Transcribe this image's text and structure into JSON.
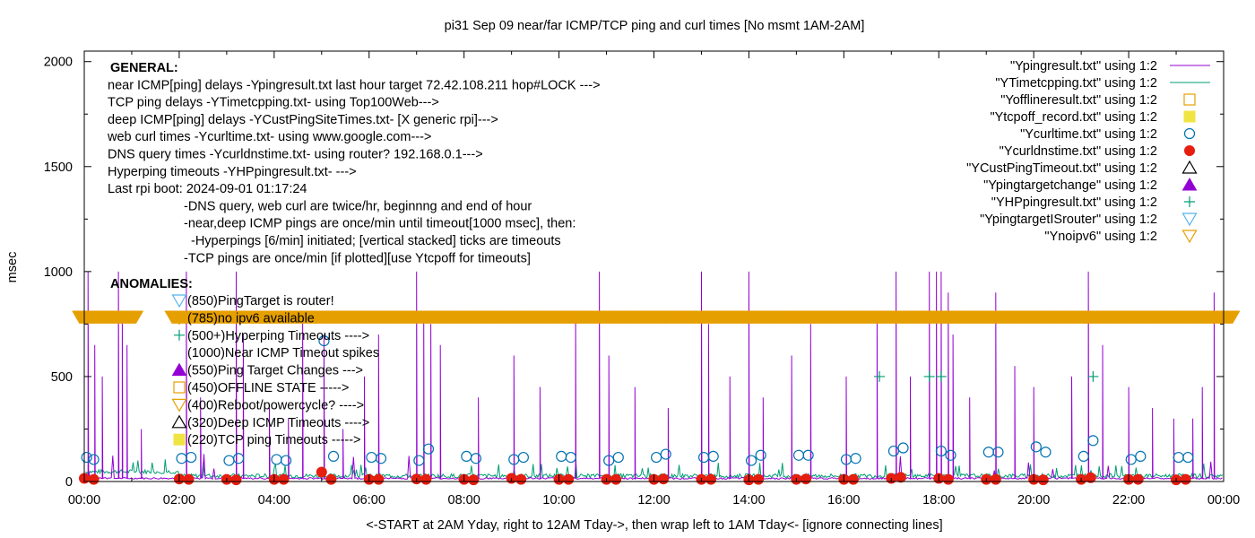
{
  "chart_data": {
    "type": "line",
    "title": "pi31 Sep 09  near/far ICMP/TCP ping and curl times [No msmt 1AM-2AM]",
    "xlabel": "<-START at 2AM Yday, right to 12AM Tday->, then wrap left to 1AM Tday<- [ignore connecting lines]",
    "ylabel": "msec",
    "xlim": [
      0,
      24
    ],
    "ylim": [
      0,
      2050
    ],
    "x_tick_labels": [
      "00:00",
      "02:00",
      "04:00",
      "06:00",
      "08:00",
      "10:00",
      "12:00",
      "14:00",
      "16:00",
      "18:00",
      "20:00",
      "22:00",
      "00:00"
    ],
    "y_tick_labels": [
      "0",
      "500",
      "1000",
      "1500",
      "2000"
    ],
    "y_tick_values": [
      0,
      500,
      1000,
      1500,
      2000
    ],
    "grid": false,
    "legend_position": "top-right",
    "legend": [
      {
        "label": "\"Ypingresult.txt\" using 1:2",
        "style": "line",
        "color": "#9400d3"
      },
      {
        "label": "\"YTimetcpping.txt\" using 1:2",
        "style": "line",
        "color": "#009e73"
      },
      {
        "label": "\"Yofflineresult.txt\" using 1:2",
        "style": "open-square",
        "color": "#e69f00"
      },
      {
        "label": "\"Ytcpoff_record.txt\" using 1:2",
        "style": "filled-square",
        "color": "#f0e442"
      },
      {
        "label": "\"Ycurltime.txt\" using 1:2",
        "style": "open-circle",
        "color": "#0072b2"
      },
      {
        "label": "\"Ycurldnstime.txt\" using 1:2",
        "style": "filled-circle",
        "color": "#e51e10"
      },
      {
        "label": "\"YCustPingTimeout.txt\" using 1:2",
        "style": "open-triangle",
        "color": "#000000"
      },
      {
        "label": "\"Ypingtargetchange\" using 1:2",
        "style": "filled-triangle",
        "color": "#9400d3"
      },
      {
        "label": "\"YHPpingresult.txt\" using 1:2",
        "style": "plus",
        "color": "#009e73"
      },
      {
        "label": "\"YpingtargetISrouter\" using 1:2",
        "style": "open-down-triangle",
        "color": "#56b4e9"
      },
      {
        "label": "\"Ynoipv6\" using 1:2",
        "style": "open-down-triangle",
        "color": "#e69f00"
      }
    ],
    "general_text": [
      {
        "text": "GENERAL:",
        "bold": true,
        "indent": 0
      },
      {
        "text": "near ICMP[ping] delays -Ypingresult.txt last hour target 72.42.108.211 hop#LOCK --->",
        "bold": false,
        "indent": 0
      },
      {
        "text": "TCP ping delays -YTimetcpping.txt- using Top100Web--->",
        "bold": false,
        "indent": 0
      },
      {
        "text": "deep ICMP[ping] delays -YCustPingSiteTimes.txt- [X generic rpi]--->",
        "bold": false,
        "indent": 0
      },
      {
        "text": "web curl times -Ycurltime.txt- using www.google.com--->",
        "bold": false,
        "indent": 0
      },
      {
        "text": "DNS query times -Ycurldnstime.txt- using router? 192.168.0.1--->",
        "bold": false,
        "indent": 0
      },
      {
        "text": "Hyperping timeouts -YHPpingresult.txt- --->",
        "bold": false,
        "indent": 0
      },
      {
        "text": "Last rpi boot: 2024-09-01 01:17:24",
        "bold": false,
        "indent": 0
      },
      {
        "text": "-DNS query, web curl are twice/hr, beginnng and end of hour",
        "bold": false,
        "indent": 1
      },
      {
        "text": "-near,deep ICMP pings are once/min until timeout[1000 msec], then:",
        "bold": false,
        "indent": 1
      },
      {
        "text": "-Hyperpings [6/min] initiated; [vertical stacked] ticks are timeouts",
        "bold": false,
        "indent": 2
      },
      {
        "text": "-TCP pings are once/min [if plotted][use Ytcpoff for timeouts]",
        "bold": false,
        "indent": 1
      }
    ],
    "anomalies_title": "ANOMALIES:",
    "anomalies": [
      {
        "value": 850,
        "text": "(850)PingTarget is router!",
        "marker": "open-down-triangle",
        "color": "#56b4e9"
      },
      {
        "value": 785,
        "text": "(785)no ipv6 available",
        "marker": "open-down-triangle",
        "color": "#e69f00"
      },
      {
        "value": 500,
        "text": "(500+)Hyperping Timeouts ---->",
        "marker": "plus",
        "color": "#009e73"
      },
      {
        "value": 1000,
        "text": "(1000)Near ICMP Timeout spikes",
        "marker": "none",
        "color": "#9400d3"
      },
      {
        "value": 550,
        "text": "(550)Ping Target Changes --->",
        "marker": "filled-triangle",
        "color": "#9400d3"
      },
      {
        "value": 450,
        "text": "(450)OFFLINE STATE ----->",
        "marker": "open-square",
        "color": "#e69f00"
      },
      {
        "value": 400,
        "text": "(400)Reboot/powercycle? ---->",
        "marker": "open-down-triangle",
        "color": "#e69f00"
      },
      {
        "value": 320,
        "text": "(320)Deep ICMP Timeouts ---->",
        "marker": "open-triangle",
        "color": "#000000"
      },
      {
        "value": 220,
        "text": "(220)TCP ping Timeouts ----->",
        "marker": "filled-square",
        "color": "#f0e442"
      }
    ],
    "series": [
      {
        "name": "Ypingresult.txt",
        "color": "#9400d3",
        "baseline": 15,
        "spikes": [
          {
            "x": 0.08,
            "y": 1000
          },
          {
            "x": 0.22,
            "y": 650
          },
          {
            "x": 0.38,
            "y": 500
          },
          {
            "x": 0.72,
            "y": 1000
          },
          {
            "x": 0.8,
            "y": 800
          },
          {
            "x": 0.9,
            "y": 650
          },
          {
            "x": 1.2,
            "y": 250
          },
          {
            "x": 2.15,
            "y": 1000
          },
          {
            "x": 2.45,
            "y": 400
          },
          {
            "x": 3.2,
            "y": 1000
          },
          {
            "x": 3.35,
            "y": 700
          },
          {
            "x": 3.9,
            "y": 350
          },
          {
            "x": 4.3,
            "y": 300
          },
          {
            "x": 4.6,
            "y": 800
          },
          {
            "x": 5.05,
            "y": 700
          },
          {
            "x": 5.45,
            "y": 250
          },
          {
            "x": 5.9,
            "y": 500
          },
          {
            "x": 6.2,
            "y": 700
          },
          {
            "x": 7.0,
            "y": 1000
          },
          {
            "x": 7.15,
            "y": 800
          },
          {
            "x": 7.3,
            "y": 750
          },
          {
            "x": 7.5,
            "y": 650
          },
          {
            "x": 8.3,
            "y": 400
          },
          {
            "x": 9.05,
            "y": 600
          },
          {
            "x": 9.6,
            "y": 450
          },
          {
            "x": 10.35,
            "y": 800
          },
          {
            "x": 10.85,
            "y": 1000
          },
          {
            "x": 11.05,
            "y": 600
          },
          {
            "x": 11.6,
            "y": 450
          },
          {
            "x": 12.3,
            "y": 350
          },
          {
            "x": 13.0,
            "y": 1000
          },
          {
            "x": 13.15,
            "y": 750
          },
          {
            "x": 13.6,
            "y": 500
          },
          {
            "x": 14.0,
            "y": 1000
          },
          {
            "x": 14.3,
            "y": 400
          },
          {
            "x": 14.9,
            "y": 600
          },
          {
            "x": 15.3,
            "y": 750
          },
          {
            "x": 16.05,
            "y": 500
          },
          {
            "x": 16.7,
            "y": 800
          },
          {
            "x": 17.1,
            "y": 1000
          },
          {
            "x": 17.4,
            "y": 500
          },
          {
            "x": 17.8,
            "y": 1000
          },
          {
            "x": 17.95,
            "y": 1000
          },
          {
            "x": 18.05,
            "y": 1000
          },
          {
            "x": 18.2,
            "y": 900
          },
          {
            "x": 18.3,
            "y": 700
          },
          {
            "x": 18.65,
            "y": 400
          },
          {
            "x": 19.2,
            "y": 900
          },
          {
            "x": 19.6,
            "y": 550
          },
          {
            "x": 20.0,
            "y": 450
          },
          {
            "x": 20.8,
            "y": 500
          },
          {
            "x": 21.15,
            "y": 1000
          },
          {
            "x": 21.45,
            "y": 650
          },
          {
            "x": 22.0,
            "y": 450
          },
          {
            "x": 22.5,
            "y": 350
          },
          {
            "x": 22.95,
            "y": 300
          },
          {
            "x": 23.35,
            "y": 300
          },
          {
            "x": 23.55,
            "y": 450
          },
          {
            "x": 23.8,
            "y": 900
          }
        ]
      },
      {
        "name": "YTimetcpping.txt",
        "color": "#009e73",
        "start_level": 45,
        "level": 25,
        "noise": 20
      },
      {
        "name": "Ycurltime.txt",
        "color": "#0072b2",
        "points": [
          {
            "x": 0.05,
            "y": 115
          },
          {
            "x": 0.2,
            "y": 105
          },
          {
            "x": 2.05,
            "y": 110
          },
          {
            "x": 2.25,
            "y": 115
          },
          {
            "x": 3.05,
            "y": 100
          },
          {
            "x": 3.25,
            "y": 110
          },
          {
            "x": 4.05,
            "y": 105
          },
          {
            "x": 4.25,
            "y": 100
          },
          {
            "x": 5.05,
            "y": 670
          },
          {
            "x": 5.25,
            "y": 120
          },
          {
            "x": 6.05,
            "y": 115
          },
          {
            "x": 6.25,
            "y": 110
          },
          {
            "x": 7.05,
            "y": 100
          },
          {
            "x": 7.25,
            "y": 155
          },
          {
            "x": 8.05,
            "y": 120
          },
          {
            "x": 8.25,
            "y": 110
          },
          {
            "x": 9.05,
            "y": 105
          },
          {
            "x": 9.25,
            "y": 115
          },
          {
            "x": 10.05,
            "y": 120
          },
          {
            "x": 10.25,
            "y": 115
          },
          {
            "x": 11.05,
            "y": 100
          },
          {
            "x": 11.25,
            "y": 115
          },
          {
            "x": 12.05,
            "y": 115
          },
          {
            "x": 12.25,
            "y": 130
          },
          {
            "x": 13.05,
            "y": 115
          },
          {
            "x": 13.25,
            "y": 120
          },
          {
            "x": 14.05,
            "y": 100
          },
          {
            "x": 14.25,
            "y": 125
          },
          {
            "x": 15.05,
            "y": 125
          },
          {
            "x": 15.25,
            "y": 125
          },
          {
            "x": 16.05,
            "y": 105
          },
          {
            "x": 16.25,
            "y": 110
          },
          {
            "x": 17.05,
            "y": 145
          },
          {
            "x": 17.25,
            "y": 160
          },
          {
            "x": 18.05,
            "y": 145
          },
          {
            "x": 18.25,
            "y": 125
          },
          {
            "x": 19.05,
            "y": 140
          },
          {
            "x": 19.25,
            "y": 140
          },
          {
            "x": 20.05,
            "y": 165
          },
          {
            "x": 20.25,
            "y": 140
          },
          {
            "x": 21.05,
            "y": 120
          },
          {
            "x": 21.25,
            "y": 195
          },
          {
            "x": 22.05,
            "y": 105
          },
          {
            "x": 22.25,
            "y": 120
          },
          {
            "x": 23.05,
            "y": 115
          },
          {
            "x": 23.25,
            "y": 115
          }
        ]
      },
      {
        "name": "Ycurldnstime.txt",
        "color": "#e51e10",
        "points": [
          {
            "x": 0.0,
            "y": 15
          },
          {
            "x": 0.2,
            "y": 10
          },
          {
            "x": 2.0,
            "y": 12
          },
          {
            "x": 2.2,
            "y": 10
          },
          {
            "x": 3.0,
            "y": 10
          },
          {
            "x": 3.2,
            "y": 8
          },
          {
            "x": 4.0,
            "y": 10
          },
          {
            "x": 4.2,
            "y": 10
          },
          {
            "x": 5.0,
            "y": 45
          },
          {
            "x": 5.2,
            "y": 10
          },
          {
            "x": 6.0,
            "y": 10
          },
          {
            "x": 6.2,
            "y": 10
          },
          {
            "x": 7.0,
            "y": 12
          },
          {
            "x": 7.2,
            "y": 10
          },
          {
            "x": 8.0,
            "y": 10
          },
          {
            "x": 8.2,
            "y": 8
          },
          {
            "x": 9.0,
            "y": 15
          },
          {
            "x": 9.2,
            "y": 10
          },
          {
            "x": 10.0,
            "y": 10
          },
          {
            "x": 10.2,
            "y": 10
          },
          {
            "x": 11.0,
            "y": 10
          },
          {
            "x": 11.2,
            "y": 10
          },
          {
            "x": 12.0,
            "y": 10
          },
          {
            "x": 12.2,
            "y": 12
          },
          {
            "x": 13.0,
            "y": 10
          },
          {
            "x": 13.2,
            "y": 10
          },
          {
            "x": 14.0,
            "y": 8
          },
          {
            "x": 14.2,
            "y": 10
          },
          {
            "x": 15.0,
            "y": 10
          },
          {
            "x": 15.2,
            "y": 12
          },
          {
            "x": 16.0,
            "y": 10
          },
          {
            "x": 16.2,
            "y": 10
          },
          {
            "x": 17.0,
            "y": 15
          },
          {
            "x": 17.2,
            "y": 20
          },
          {
            "x": 18.0,
            "y": 15
          },
          {
            "x": 18.2,
            "y": 10
          },
          {
            "x": 19.0,
            "y": 10
          },
          {
            "x": 19.2,
            "y": 10
          },
          {
            "x": 20.0,
            "y": 10
          },
          {
            "x": 20.2,
            "y": 8
          },
          {
            "x": 21.0,
            "y": 10
          },
          {
            "x": 21.2,
            "y": 18
          },
          {
            "x": 22.0,
            "y": 10
          },
          {
            "x": 22.2,
            "y": 10
          },
          {
            "x": 23.0,
            "y": 8
          },
          {
            "x": 23.2,
            "y": 10
          }
        ]
      },
      {
        "name": "YHPpingresult.txt",
        "color": "#009e73",
        "points": [
          {
            "x": 16.75,
            "y": 500
          },
          {
            "x": 17.8,
            "y": 500
          },
          {
            "x": 18.05,
            "y": 500
          },
          {
            "x": 21.25,
            "y": 500
          }
        ]
      },
      {
        "name": "Ynoipv6",
        "color": "#e69f00",
        "value": 785,
        "x_ranges": [
          [
            -0.1,
            1.1
          ],
          [
            1.85,
            24.2
          ]
        ]
      }
    ]
  }
}
